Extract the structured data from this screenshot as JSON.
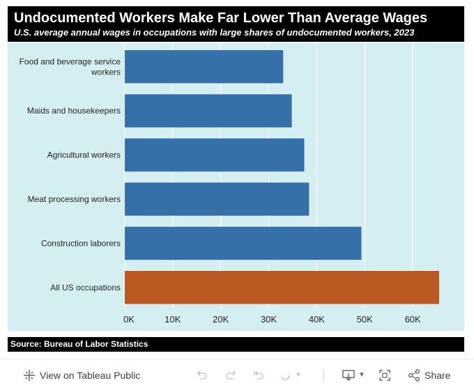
{
  "header": {
    "title": "Undocumented Workers Make Far Lower Than Average Wages",
    "subtitle": "U.S. average annual wages in occupations with large shares of undocumented workers, 2023"
  },
  "chart_data": {
    "type": "bar",
    "orientation": "horizontal",
    "title": "Undocumented Workers Make Far Lower Than Average Wages",
    "subtitle": "U.S. average annual wages in occupations with large shares of undocumented workers, 2023",
    "categories": [
      "Food and beverage service workers",
      "Maids and housekeepers",
      "Agricultural workers",
      "Meat processing workers",
      "Construction laborers",
      "All US occupations"
    ],
    "values": [
      33000,
      34800,
      37400,
      38400,
      49300,
      65500
    ],
    "bar_colors": [
      "#3570a8",
      "#3570a8",
      "#3570a8",
      "#3570a8",
      "#3570a8",
      "#bc5822"
    ],
    "xlim": [
      0,
      70000
    ],
    "x_ticks": [
      0,
      10000,
      20000,
      30000,
      40000,
      50000,
      60000
    ],
    "x_tick_labels": [
      "0K",
      "10K",
      "20K",
      "30K",
      "40K",
      "50K",
      "60K"
    ],
    "grid": "vertical",
    "xlabel": "",
    "ylabel": ""
  },
  "source": {
    "text": "Source: Bureau of Labor Statistics"
  },
  "toolbar": {
    "view_label": "View on Tableau Public",
    "share_label": "Share"
  },
  "colors": {
    "background": "#d5eef1",
    "bar": "#3570a8",
    "highlight_bar": "#bc5822",
    "header": "#000000"
  }
}
